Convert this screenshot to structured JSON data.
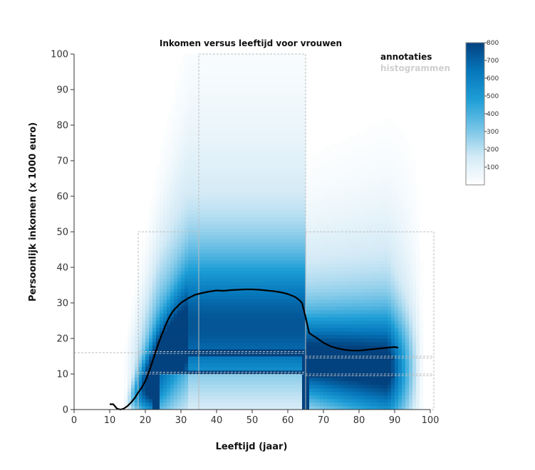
{
  "chart_data": {
    "type": "heatmap",
    "title": "Inkomen versus leeftijd voor vrouwen",
    "xlabel": "Leeftijd (jaar)",
    "ylabel": "Persoonlijk inkomen (x 1000 euro)",
    "xlim": [
      0,
      100
    ],
    "ylim": [
      0,
      100
    ],
    "xticks": [
      "0",
      "10",
      "20",
      "30",
      "40",
      "50",
      "60",
      "70",
      "80",
      "90",
      "100"
    ],
    "yticks": [
      "0",
      "10",
      "20",
      "30",
      "40",
      "50",
      "60",
      "70",
      "80",
      "90",
      "100"
    ],
    "legend": [
      {
        "label": "annotaties",
        "active": true
      },
      {
        "label": "histogrammen",
        "active": false
      }
    ],
    "colorbar": {
      "min": 0,
      "max": 800,
      "ticks": [
        "800",
        "700",
        "600",
        "500",
        "400",
        "300",
        "200",
        "100"
      ],
      "colors": [
        "#ffffff",
        "#d3eaf6",
        "#73c3e6",
        "#1e9ed6",
        "#0677bb",
        "#03427f"
      ]
    },
    "mean_income_line": {
      "x": [
        10,
        11,
        12,
        13,
        14,
        15,
        16,
        17,
        18,
        19,
        20,
        21,
        22,
        23,
        24,
        25,
        26,
        27,
        28,
        29,
        30,
        32,
        34,
        36,
        38,
        40,
        42,
        44,
        46,
        48,
        50,
        52,
        54,
        56,
        58,
        60,
        62,
        63,
        64,
        65,
        66,
        68,
        70,
        72,
        74,
        76,
        78,
        80,
        82,
        84,
        86,
        88,
        90,
        91
      ],
      "y": [
        1.5,
        1.5,
        0.3,
        0.0,
        0.3,
        1.0,
        2.0,
        3.2,
        4.8,
        6.2,
        8.0,
        10.5,
        13.5,
        16.5,
        19.5,
        22.0,
        24.5,
        26.5,
        28.0,
        29.0,
        30.0,
        31.3,
        32.3,
        32.8,
        33.2,
        33.5,
        33.4,
        33.6,
        33.7,
        33.8,
        33.8,
        33.7,
        33.5,
        33.3,
        33.0,
        32.5,
        31.7,
        31.0,
        30.0,
        26.0,
        21.5,
        20.2,
        18.8,
        17.8,
        17.2,
        16.8,
        16.6,
        16.6,
        16.8,
        17.0,
        17.2,
        17.4,
        17.6,
        17.4
      ]
    },
    "annotation_boxes": [
      {
        "x": [
          18,
          35
        ],
        "y": [
          0,
          50
        ]
      },
      {
        "x": [
          35,
          65
        ],
        "y": [
          0,
          100
        ]
      },
      {
        "x": [
          65,
          101
        ],
        "y": [
          0,
          50
        ]
      },
      {
        "x": [
          0,
          18
        ],
        "y": [
          0,
          16
        ]
      },
      {
        "x": [
          65,
          101
        ],
        "y": [
          14.5,
          15
        ]
      },
      {
        "x": [
          65,
          101
        ],
        "y": [
          9.5,
          10
        ]
      },
      {
        "x": [
          18,
          65
        ],
        "y": [
          10,
          10.5
        ]
      },
      {
        "x": [
          18,
          65
        ],
        "y": [
          15.8,
          16.3
        ]
      }
    ]
  }
}
